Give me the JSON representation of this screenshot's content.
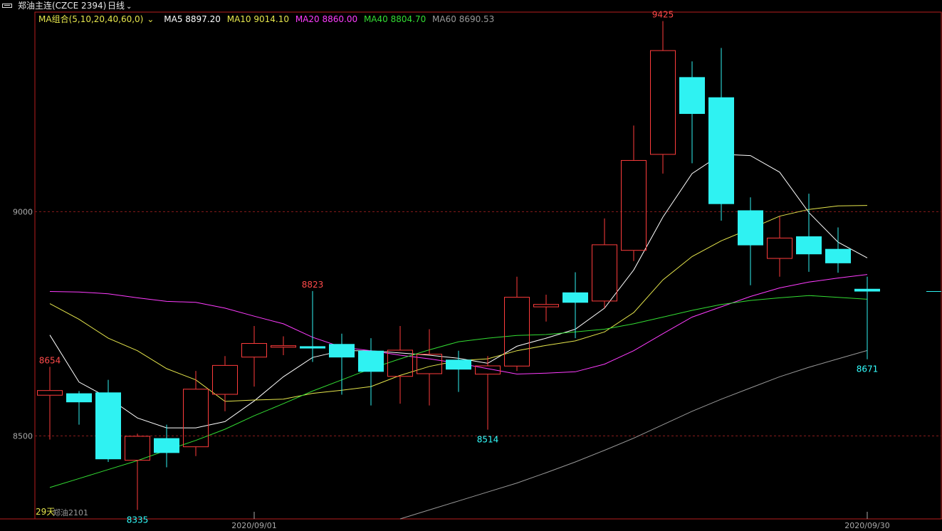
{
  "header": {
    "title": "郑油主连(CZCE 2394)",
    "period": "日线"
  },
  "legend": {
    "combo": "MA组合(5,10,20,40,60,0)",
    "items": [
      {
        "label": "MA5 8897.20",
        "color": "#ffffff"
      },
      {
        "label": "MA10 9014.10",
        "color": "#e6e64c"
      },
      {
        "label": "MA20 8860.00",
        "color": "#ff3cff"
      },
      {
        "label": "MA40 8804.70",
        "color": "#33dd33"
      },
      {
        "label": "MA60 8690.53",
        "color": "#999999"
      }
    ],
    "combo_color": "#e6e64c"
  },
  "footer": {
    "days_label": "29天",
    "contract_label": "郑油2101"
  },
  "chart_data": {
    "type": "candlestick",
    "ylim": [
      8315,
      9445
    ],
    "y_ticks": [
      8500,
      9000
    ],
    "x_ticks": [
      {
        "index": 7,
        "label": "2020/09/01"
      },
      {
        "index": 28,
        "label": "2020/09/30"
      }
    ],
    "candles": [
      {
        "o": 8590,
        "c": 8602,
        "h": 8654,
        "l": 8492
      },
      {
        "o": 8595,
        "c": 8575,
        "h": 8600,
        "l": 8525
      },
      {
        "o": 8597,
        "c": 8448,
        "h": 8625,
        "l": 8442
      },
      {
        "o": 8445,
        "c": 8500,
        "h": 8505,
        "l": 8335
      },
      {
        "o": 8495,
        "c": 8462,
        "h": 8525,
        "l": 8430
      },
      {
        "o": 8475,
        "c": 8605,
        "h": 8645,
        "l": 8455
      },
      {
        "o": 8592,
        "c": 8658,
        "h": 8678,
        "l": 8555
      },
      {
        "o": 8675,
        "c": 8707,
        "h": 8745,
        "l": 8610
      },
      {
        "o": 8697,
        "c": 8702,
        "h": 8722,
        "l": 8680
      },
      {
        "o": 8700,
        "c": 8695,
        "h": 8823,
        "l": 8665
      },
      {
        "o": 8705,
        "c": 8675,
        "h": 8728,
        "l": 8592
      },
      {
        "o": 8690,
        "c": 8643,
        "h": 8718,
        "l": 8568
      },
      {
        "o": 8632,
        "c": 8692,
        "h": 8745,
        "l": 8572
      },
      {
        "o": 8638,
        "c": 8683,
        "h": 8738,
        "l": 8568
      },
      {
        "o": 8670,
        "c": 8648,
        "h": 8690,
        "l": 8598
      },
      {
        "o": 8637,
        "c": 8657,
        "h": 8678,
        "l": 8514
      },
      {
        "o": 8655,
        "c": 8810,
        "h": 8855,
        "l": 8645
      },
      {
        "o": 8787,
        "c": 8794,
        "h": 8815,
        "l": 8755
      },
      {
        "o": 8820,
        "c": 8797,
        "h": 8865,
        "l": 8718
      },
      {
        "o": 8800,
        "c": 8927,
        "h": 8985,
        "l": 8785
      },
      {
        "o": 8913,
        "c": 9115,
        "h": 9192,
        "l": 8890
      },
      {
        "o": 9127,
        "c": 9360,
        "h": 9425,
        "l": 9085
      },
      {
        "o": 9300,
        "c": 9218,
        "h": 9335,
        "l": 9108
      },
      {
        "o": 9255,
        "c": 9017,
        "h": 9365,
        "l": 8980
      },
      {
        "o": 9003,
        "c": 8925,
        "h": 9032,
        "l": 8836
      },
      {
        "o": 8895,
        "c": 8942,
        "h": 8990,
        "l": 8855
      },
      {
        "o": 8945,
        "c": 8905,
        "h": 9040,
        "l": 8866
      },
      {
        "o": 8917,
        "c": 8885,
        "h": 8965,
        "l": 8864
      },
      {
        "o": 8828,
        "c": 8822,
        "h": 8855,
        "l": 8671
      }
    ],
    "annotations": [
      {
        "index": 0,
        "price": 8654,
        "text": "8654",
        "color": "red",
        "pos": "above"
      },
      {
        "index": 3,
        "price": 8335,
        "text": "8335",
        "color": "cyan",
        "pos": "below"
      },
      {
        "index": 9,
        "price": 8823,
        "text": "8823",
        "color": "red",
        "pos": "above"
      },
      {
        "index": 15,
        "price": 8514,
        "text": "8514",
        "color": "cyan",
        "pos": "below"
      },
      {
        "index": 21,
        "price": 9425,
        "text": "9425",
        "color": "red",
        "pos": "above"
      },
      {
        "index": 28,
        "price": 8671,
        "text": "8671",
        "color": "cyan",
        "pos": "below"
      }
    ],
    "series": [
      {
        "name": "MA5",
        "color": "#ffffff",
        "start": 0,
        "values": [
          8725,
          8620,
          8585,
          8540,
          8518,
          8518,
          8532,
          8578,
          8632,
          8675,
          8690,
          8690,
          8685,
          8680,
          8673,
          8662,
          8700,
          8718,
          8738,
          8785,
          8870,
          8988,
          9085,
          9128,
          9125,
          9088,
          8998,
          8932,
          8897
        ]
      },
      {
        "name": "MA10",
        "color": "#e6e64c",
        "start": 0,
        "values": [
          8795,
          8760,
          8718,
          8690,
          8650,
          8625,
          8577,
          8580,
          8582,
          8595,
          8602,
          8610,
          8635,
          8655,
          8668,
          8672,
          8690,
          8702,
          8712,
          8732,
          8775,
          8848,
          8900,
          8935,
          8962,
          8990,
          9005,
          9013,
          9014
        ]
      },
      {
        "name": "MA20",
        "color": "#ff3cff",
        "start": 0,
        "values": [
          8822,
          8821,
          8817,
          8808,
          8800,
          8798,
          8785,
          8767,
          8750,
          8720,
          8698,
          8690,
          8680,
          8672,
          8662,
          8650,
          8638,
          8640,
          8643,
          8660,
          8690,
          8728,
          8765,
          8788,
          8811,
          8830,
          8843,
          8852,
          8860
        ]
      },
      {
        "name": "MA40",
        "color": "#33dd33",
        "start": 0,
        "values": [
          8385,
          8405,
          8425,
          8445,
          8468,
          8490,
          8515,
          8545,
          8572,
          8600,
          8625,
          8650,
          8672,
          8692,
          8710,
          8718,
          8724,
          8726,
          8732,
          8738,
          8750,
          8765,
          8780,
          8793,
          8802,
          8808,
          8813,
          8809,
          8804.7
        ]
      },
      {
        "name": "MA60",
        "color": "#999999",
        "start": 12,
        "values": [
          8315,
          8335,
          8355,
          8375,
          8395,
          8418,
          8442,
          8468,
          8495,
          8525,
          8555,
          8582,
          8607,
          8632,
          8653,
          8672,
          8690.53
        ]
      }
    ]
  }
}
